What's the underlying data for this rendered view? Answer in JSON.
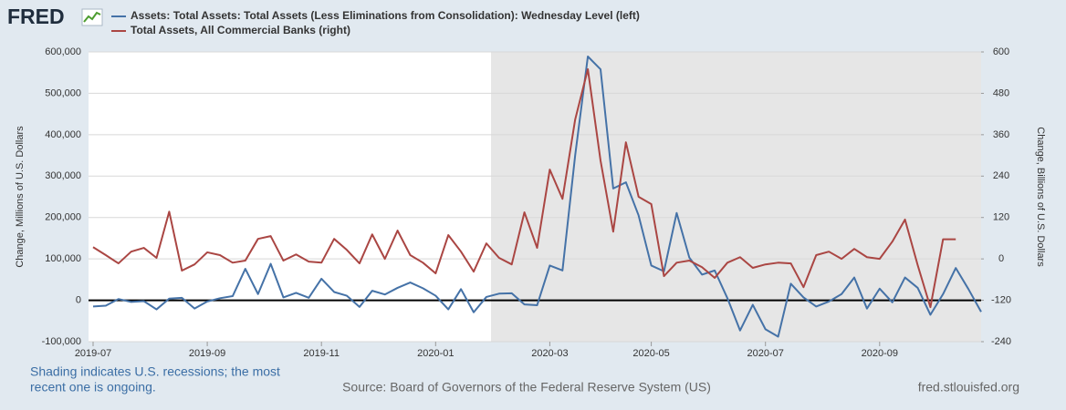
{
  "logo": "FRED",
  "chart_data": {
    "type": "line",
    "categories": [
      "2019-07",
      null,
      null,
      null,
      null,
      null,
      null,
      null,
      null,
      "2019-09",
      null,
      null,
      null,
      null,
      null,
      null,
      null,
      null,
      "2019-11",
      null,
      null,
      null,
      null,
      null,
      null,
      null,
      null,
      "2020-01",
      null,
      null,
      null,
      null,
      null,
      null,
      null,
      null,
      "2020-03",
      null,
      null,
      null,
      null,
      null,
      null,
      null,
      "2020-05",
      null,
      null,
      null,
      null,
      null,
      null,
      null,
      null,
      "2020-07",
      null,
      null,
      null,
      null,
      null,
      null,
      null,
      null,
      "2020-09",
      null,
      null,
      null,
      null,
      null,
      null,
      null,
      null
    ],
    "series": [
      {
        "name": "Assets: Total Assets: Total Assets (Less Eliminations from Consolidation): Wednesday Level (left)",
        "color": "#4572a7",
        "axis": "y",
        "values": [
          -15000,
          -13000,
          3000,
          -4000,
          -2000,
          -22000,
          4000,
          6000,
          -20000,
          -3000,
          5000,
          10000,
          76000,
          15000,
          88000,
          7000,
          18000,
          6000,
          52000,
          20000,
          11000,
          -16000,
          23000,
          14000,
          30000,
          43000,
          29000,
          11000,
          -22000,
          27000,
          -29000,
          8000,
          16000,
          17000,
          -10000,
          -12000,
          84000,
          72000,
          350000,
          589000,
          558000,
          270000,
          285000,
          205000,
          84000,
          70000,
          211000,
          103000,
          62000,
          72000,
          5000,
          -73000,
          -11000,
          -70000,
          -88000,
          40000,
          7000,
          -15000,
          -3000,
          15000,
          55000,
          -20000,
          28000,
          -5000,
          55000,
          30000,
          -35000,
          15000,
          78000,
          27000,
          -28000
        ]
      },
      {
        "name": "Total Assets, All Commercial Banks (right)",
        "color": "#aa4643",
        "axis": "y2",
        "values": [
          34,
          11,
          -13,
          21,
          32,
          3,
          137,
          -34,
          -16,
          19,
          11,
          -11,
          -5,
          58,
          66,
          -5,
          13,
          -8,
          -11,
          58,
          26,
          -13,
          71,
          0,
          82,
          11,
          -11,
          -42,
          69,
          21,
          -37,
          45,
          3,
          -16,
          135,
          32,
          259,
          174,
          404,
          550,
          285,
          79,
          338,
          180,
          159,
          -50,
          -11,
          -5,
          -24,
          -55,
          -11,
          5,
          -26,
          -16,
          -11,
          -13,
          -82,
          11,
          21,
          0,
          29,
          5,
          0,
          50,
          114,
          -18,
          -140,
          57,
          57,
          null,
          null
        ]
      }
    ],
    "ylabel": "Change, Millions of U.S. Dollars",
    "y2label": "Change, Billions of U.S. Dollars",
    "ylim": [
      -100000,
      600000
    ],
    "yticks": [
      {
        "value": -100000,
        "label": "-100,000"
      },
      0,
      {
        "value": 100000,
        "label": "100,000"
      },
      {
        "value": 200000,
        "label": "200,000"
      },
      {
        "value": 300000,
        "label": "300,000"
      },
      {
        "value": 400000,
        "label": "400,000"
      },
      {
        "value": 500000,
        "label": "500,000"
      },
      {
        "value": 600000,
        "label": "600,000"
      }
    ],
    "y2lim": [
      -240,
      600
    ],
    "y2ticks": [
      -240,
      -120,
      0,
      120,
      240,
      360,
      480,
      600
    ],
    "grid": true,
    "note": [
      "Shading indicates U.S. recessions; the most",
      "recent one is ongoing."
    ],
    "source": "Source: Board of Governors of the Federal Reserve System (US)",
    "url": "fred.stlouisfed.org"
  }
}
